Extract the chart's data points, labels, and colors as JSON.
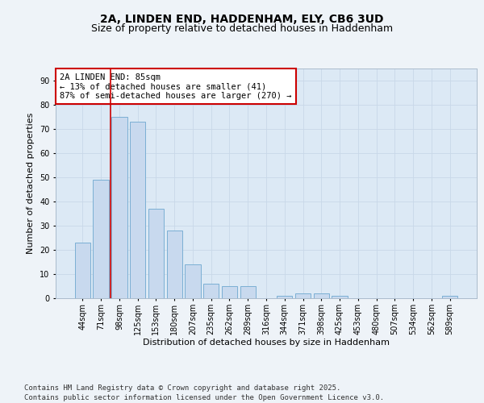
{
  "title": "2A, LINDEN END, HADDENHAM, ELY, CB6 3UD",
  "subtitle": "Size of property relative to detached houses in Haddenham",
  "xlabel": "Distribution of detached houses by size in Haddenham",
  "ylabel": "Number of detached properties",
  "categories": [
    "44sqm",
    "71sqm",
    "98sqm",
    "125sqm",
    "153sqm",
    "180sqm",
    "207sqm",
    "235sqm",
    "262sqm",
    "289sqm",
    "316sqm",
    "344sqm",
    "371sqm",
    "398sqm",
    "425sqm",
    "453sqm",
    "480sqm",
    "507sqm",
    "534sqm",
    "562sqm",
    "589sqm"
  ],
  "values": [
    23,
    49,
    75,
    73,
    37,
    28,
    14,
    6,
    5,
    5,
    0,
    1,
    2,
    2,
    1,
    0,
    0,
    0,
    0,
    0,
    1
  ],
  "bar_color": "#c8d9ee",
  "bar_edge_color": "#7bafd4",
  "vline_x": 1.5,
  "annotation_text": "2A LINDEN END: 85sqm\n← 13% of detached houses are smaller (41)\n87% of semi-detached houses are larger (270) →",
  "annotation_box_color": "#ffffff",
  "annotation_box_edge_color": "#cc0000",
  "ylim": [
    0,
    95
  ],
  "yticks": [
    0,
    10,
    20,
    30,
    40,
    50,
    60,
    70,
    80,
    90
  ],
  "grid_color": "#c8d8e8",
  "background_color": "#dce9f5",
  "fig_background": "#eef3f8",
  "footer_text": "Contains HM Land Registry data © Crown copyright and database right 2025.\nContains public sector information licensed under the Open Government Licence v3.0.",
  "title_fontsize": 10,
  "subtitle_fontsize": 9,
  "axis_label_fontsize": 8,
  "tick_fontsize": 7,
  "annotation_fontsize": 7.5,
  "footer_fontsize": 6.5
}
